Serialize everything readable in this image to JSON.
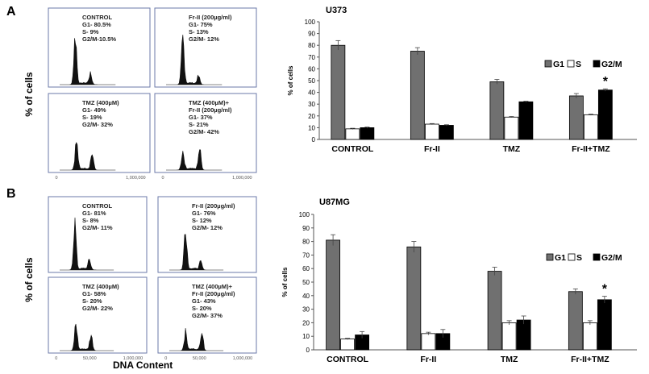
{
  "panel_A": {
    "label": "A",
    "histograms": [
      {
        "lines": [
          "CONTROL",
          "G1- 80.5%",
          "S- 9%",
          "G2/M-10.5%"
        ],
        "ticks": []
      },
      {
        "lines": [
          "Fr-II (200µg/ml)",
          "G1- 75%",
          "S- 13%",
          "G2/M- 12%"
        ],
        "ticks": []
      },
      {
        "lines": [
          "TMZ (400µM)",
          "G1- 49%",
          "S- 19%",
          "G2/M- 32%"
        ],
        "ticks": [
          "0",
          "1,000,000"
        ]
      },
      {
        "lines": [
          "TMZ (400µM)+",
          "Fr-II (200µg/ml)",
          "G1- 37%",
          "S- 21%",
          "G2/M- 42%"
        ],
        "ticks": [
          "0",
          "1,000,000"
        ]
      }
    ]
  },
  "panel_B": {
    "label": "B",
    "histograms": [
      {
        "lines": [
          "CONTROL",
          "G1- 81%",
          "S- 8%",
          "G2/M- 11%"
        ],
        "ticks": []
      },
      {
        "lines": [
          "Fr-II (200µg/ml)",
          "G1- 76%",
          "S- 12%",
          "G2/M- 12%"
        ],
        "ticks": []
      },
      {
        "lines": [
          "TMZ (400µM)",
          "G1- 58%",
          "S- 20%",
          "G2/M- 22%"
        ],
        "ticks": [
          "0",
          "50,000",
          "1,000,000"
        ]
      },
      {
        "lines": [
          "TMZ (400µM)+",
          "Fr-II (200µg/ml)",
          "G1- 43%",
          "S- 20%",
          "G2/M- 37%"
        ],
        "ticks": [
          "0",
          "50,000",
          "1,000,000"
        ]
      }
    ]
  },
  "histogram_ylabel": "% of cells",
  "histogram_xlabel": "DNA Content",
  "chart_data": [
    {
      "type": "bar",
      "title": "U373",
      "ylabel": "% of cells",
      "xlabel": "",
      "ylim": [
        0,
        100
      ],
      "yticks": [
        "0",
        "10",
        "20",
        "30",
        "40",
        "50",
        "60",
        "70",
        "80",
        "90",
        "100"
      ],
      "categories": [
        "CONTROL",
        "Fr-II",
        "TMZ",
        "Fr-II+TMZ"
      ],
      "series": [
        {
          "name": "G1",
          "color": "#707070",
          "values": [
            80,
            75,
            49,
            37
          ],
          "errors": [
            4,
            3,
            2,
            2
          ]
        },
        {
          "name": "S",
          "color": "#ffffff",
          "values": [
            9,
            13,
            19,
            21
          ],
          "errors": [
            0.5,
            0.5,
            0.5,
            0.5
          ]
        },
        {
          "name": "G2/M",
          "color": "#000000",
          "values": [
            10,
            12,
            32,
            42
          ],
          "errors": [
            0.5,
            0.5,
            0.5,
            1
          ]
        }
      ],
      "annotation": {
        "text": "*",
        "category": "Fr-II+TMZ",
        "series": "G2/M"
      },
      "legend": "top-right"
    },
    {
      "type": "bar",
      "title": "U87MG",
      "ylabel": "% of cells",
      "xlabel": "",
      "ylim": [
        0,
        100
      ],
      "yticks": [
        "0",
        "10",
        "20",
        "30",
        "40",
        "50",
        "60",
        "70",
        "80",
        "90",
        "100"
      ],
      "categories": [
        "CONTROL",
        "Fr-II",
        "TMZ",
        "Fr-II+TMZ"
      ],
      "series": [
        {
          "name": "G1",
          "color": "#707070",
          "values": [
            81,
            76,
            58,
            43
          ],
          "errors": [
            4,
            4,
            3,
            2
          ]
        },
        {
          "name": "S",
          "color": "#ffffff",
          "values": [
            8,
            12,
            20,
            20
          ],
          "errors": [
            0.5,
            1,
            1.5,
            1.5
          ]
        },
        {
          "name": "G2/M",
          "color": "#000000",
          "values": [
            11,
            12,
            22,
            37
          ],
          "errors": [
            2.5,
            3,
            3,
            2.5
          ]
        }
      ],
      "annotation": {
        "text": "*",
        "category": "Fr-II+TMZ",
        "series": "G2/M"
      },
      "legend": "top-right"
    }
  ]
}
